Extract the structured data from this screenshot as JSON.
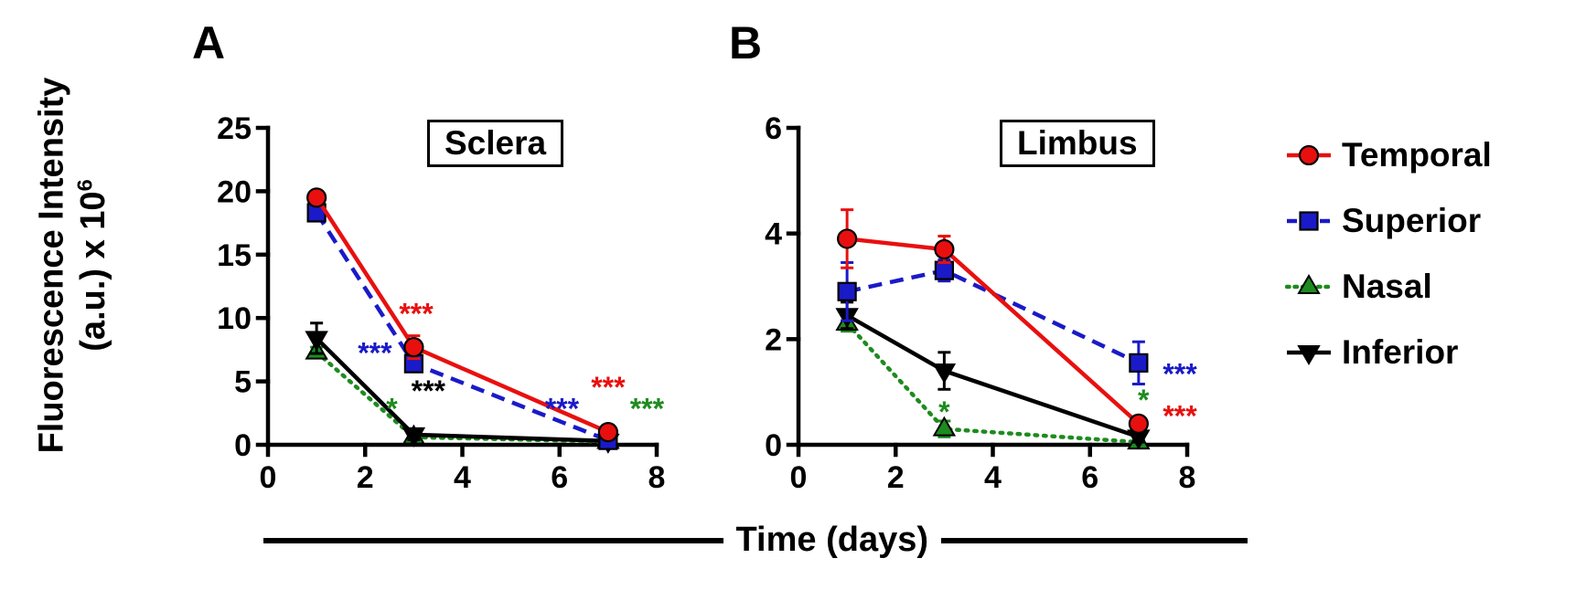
{
  "figure": {
    "ylabel_line1": "Fluorescence Intensity",
    "ylabel_line2_base": "(a.u.) x 10",
    "ylabel_exponent": "6",
    "xlabel": "Time (days)"
  },
  "legend": {
    "items": [
      {
        "label": "Temporal",
        "color": "#e8100f",
        "marker": "circle",
        "line": "solid"
      },
      {
        "label": "Superior",
        "color": "#1a1ac8",
        "marker": "square",
        "line": "dashed"
      },
      {
        "label": "Nasal",
        "color": "#1e8b1e",
        "marker": "triangle-up",
        "line": "dotted"
      },
      {
        "label": "Inferior",
        "color": "#000000",
        "marker": "triangle-down",
        "line": "solid"
      }
    ]
  },
  "chart_data": [
    {
      "type": "line",
      "panel": "A",
      "box_label": "Sclera",
      "x": [
        1,
        3,
        7
      ],
      "xlim": [
        0,
        8
      ],
      "xticks": [
        0,
        2,
        4,
        6,
        8
      ],
      "ylim": [
        0,
        25
      ],
      "yticks": [
        0,
        5,
        10,
        15,
        20,
        25
      ],
      "grid": false,
      "series": [
        {
          "name": "Nasal",
          "values": [
            7.3,
            0.6,
            0.25
          ],
          "errors": [
            0.4,
            0.3,
            0.15
          ]
        },
        {
          "name": "Inferior",
          "values": [
            8.4,
            0.8,
            0.3
          ],
          "errors": [
            1.2,
            0.4,
            0.2
          ]
        },
        {
          "name": "Superior",
          "values": [
            18.3,
            6.4,
            0.35
          ],
          "errors": [
            0.5,
            0.5,
            0.2
          ]
        },
        {
          "name": "Temporal",
          "values": [
            19.5,
            7.7,
            1.0
          ],
          "errors": [
            0.5,
            0.9,
            0.3
          ]
        }
      ],
      "annotations": [
        {
          "text": "***",
          "x": 3.05,
          "y": 11.0,
          "series": "Temporal"
        },
        {
          "text": "***",
          "x": 2.2,
          "y": 7.9,
          "series": "Superior"
        },
        {
          "text": "***",
          "x": 3.3,
          "y": 4.9,
          "series": "Inferior"
        },
        {
          "text": "*",
          "x": 2.55,
          "y": 3.5,
          "series": "Nasal"
        },
        {
          "text": "***",
          "x": 7.0,
          "y": 5.2,
          "series": "Temporal"
        },
        {
          "text": "***",
          "x": 6.05,
          "y": 3.5,
          "series": "Superior"
        },
        {
          "text": "***",
          "x": 7.8,
          "y": 3.5,
          "series": "Nasal"
        }
      ]
    },
    {
      "type": "line",
      "panel": "B",
      "box_label": "Limbus",
      "x": [
        1,
        3,
        7
      ],
      "xlim": [
        0,
        8
      ],
      "xticks": [
        0,
        2,
        4,
        6,
        8
      ],
      "ylim": [
        0,
        6
      ],
      "yticks": [
        0,
        2,
        4,
        6
      ],
      "grid": false,
      "series": [
        {
          "name": "Nasal",
          "values": [
            2.3,
            0.3,
            0.05
          ],
          "errors": [
            0.15,
            0.15,
            0.05
          ]
        },
        {
          "name": "Inferior",
          "values": [
            2.45,
            1.4,
            0.15
          ],
          "errors": [
            0.25,
            0.35,
            0.1
          ]
        },
        {
          "name": "Superior",
          "values": [
            2.9,
            3.3,
            1.55
          ],
          "errors": [
            0.55,
            0.2,
            0.4
          ]
        },
        {
          "name": "Temporal",
          "values": [
            3.9,
            3.7,
            0.4
          ],
          "errors": [
            0.55,
            0.25,
            0.1
          ]
        }
      ],
      "annotations": [
        {
          "text": "*",
          "x": 3.0,
          "y": 0.78,
          "series": "Nasal"
        },
        {
          "text": "***",
          "x": 7.85,
          "y": 1.5,
          "series": "Superior"
        },
        {
          "text": "***",
          "x": 7.85,
          "y": 0.7,
          "series": "Temporal"
        },
        {
          "text": "*",
          "x": 7.1,
          "y": 1.0,
          "series": "Nasal"
        }
      ]
    }
  ]
}
